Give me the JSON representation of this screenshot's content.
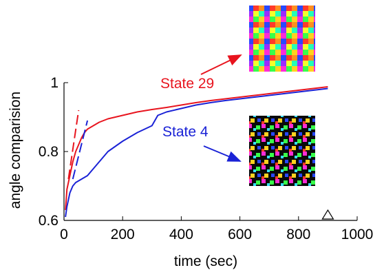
{
  "chart_data": {
    "type": "line",
    "xlabel": "time (sec)",
    "ylabel": "angle comparision",
    "xlim": [
      0,
      1000
    ],
    "ylim": [
      0.6,
      1.0
    ],
    "xticks": [
      0,
      200,
      400,
      600,
      800,
      1000
    ],
    "yticks": [
      0.6,
      0.8,
      1
    ],
    "xtick_labels": [
      "0",
      "200",
      "400",
      "600",
      "800",
      "1000"
    ],
    "ytick_labels": [
      "0.6",
      "0.8",
      "1"
    ],
    "grid": false,
    "series": [
      {
        "name": "State 29",
        "color": "#e8141e",
        "x": [
          5,
          10,
          20,
          30,
          40,
          50,
          60,
          70,
          80,
          100,
          120,
          150,
          200,
          250,
          300,
          350,
          400,
          450,
          500,
          550,
          600,
          650,
          700,
          750,
          800,
          850,
          900
        ],
        "y": [
          0.63,
          0.69,
          0.73,
          0.77,
          0.8,
          0.82,
          0.84,
          0.855,
          0.865,
          0.875,
          0.885,
          0.895,
          0.905,
          0.915,
          0.922,
          0.928,
          0.935,
          0.942,
          0.948,
          0.953,
          0.958,
          0.963,
          0.968,
          0.973,
          0.978,
          0.983,
          0.988
        ]
      },
      {
        "name": "State 4",
        "color": "#1a22d6",
        "x": [
          5,
          10,
          20,
          30,
          40,
          50,
          60,
          80,
          100,
          120,
          150,
          200,
          250,
          300,
          320,
          350,
          400,
          450,
          500,
          550,
          600,
          650,
          700,
          750,
          800,
          850,
          900
        ],
        "y": [
          0.61,
          0.64,
          0.68,
          0.7,
          0.71,
          0.715,
          0.72,
          0.73,
          0.75,
          0.77,
          0.8,
          0.83,
          0.855,
          0.875,
          0.905,
          0.915,
          0.925,
          0.935,
          0.942,
          0.948,
          0.953,
          0.958,
          0.963,
          0.968,
          0.973,
          0.978,
          0.983
        ]
      }
    ],
    "fit_lines": [
      {
        "series": "State 29",
        "color": "#e8141e",
        "x": [
          15,
          50
        ],
        "y": [
          0.72,
          0.92
        ]
      },
      {
        "series": "State 4",
        "color": "#1a22d6",
        "x": [
          30,
          80
        ],
        "y": [
          0.72,
          0.89
        ]
      }
    ],
    "annotations": [
      {
        "text": "State 29",
        "color": "#e8141e"
      },
      {
        "text": "State 4",
        "color": "#1a22d6"
      }
    ],
    "marker": {
      "symbol": "triangle",
      "x": 900
    }
  }
}
